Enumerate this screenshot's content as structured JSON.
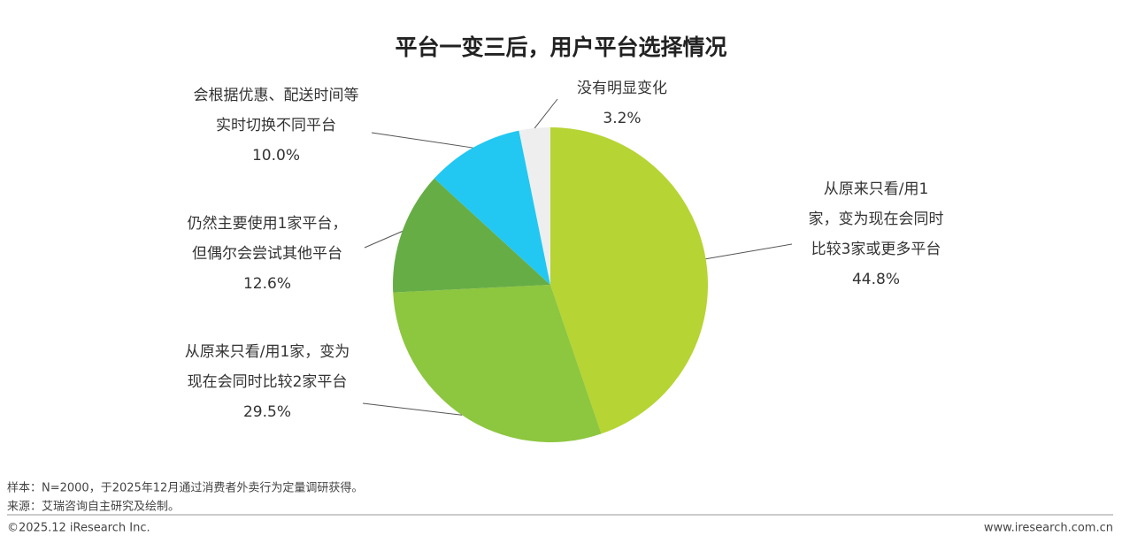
{
  "chart_data": {
    "type": "pie",
    "title": "平台一变三后，用户平台选择情况",
    "categories": [
      [
        "从原来只看/用1",
        "家，变为现在会同时",
        "比较3家或更多平台"
      ],
      [
        "从原来只看/用1家，变为",
        "现在会同时比较2家平台"
      ],
      [
        "仍然主要使用1家平台，",
        "但偶尔会尝试其他平台"
      ],
      [
        "会根据优惠、配送时间等",
        "实时切换不同平台"
      ],
      [
        "没有明显变化"
      ]
    ],
    "values": [
      44.8,
      29.5,
      12.6,
      10.0,
      3.2
    ],
    "value_labels": [
      "44.8%",
      "29.5%",
      "12.6%",
      "10.0%",
      "3.2%"
    ],
    "colors": [
      "#b6d433",
      "#8dc63f",
      "#66ad45",
      "#22c8f1",
      "#eeeeee"
    ]
  },
  "footer": {
    "note": "样本：N=2000，于2025年12月通过消费者外卖行为定量调研获得。",
    "source": "来源：艾瑞咨询自主研究及绘制。",
    "copyright": "©2025.12 iResearch Inc.",
    "website": "www.iresearch.com.cn"
  }
}
